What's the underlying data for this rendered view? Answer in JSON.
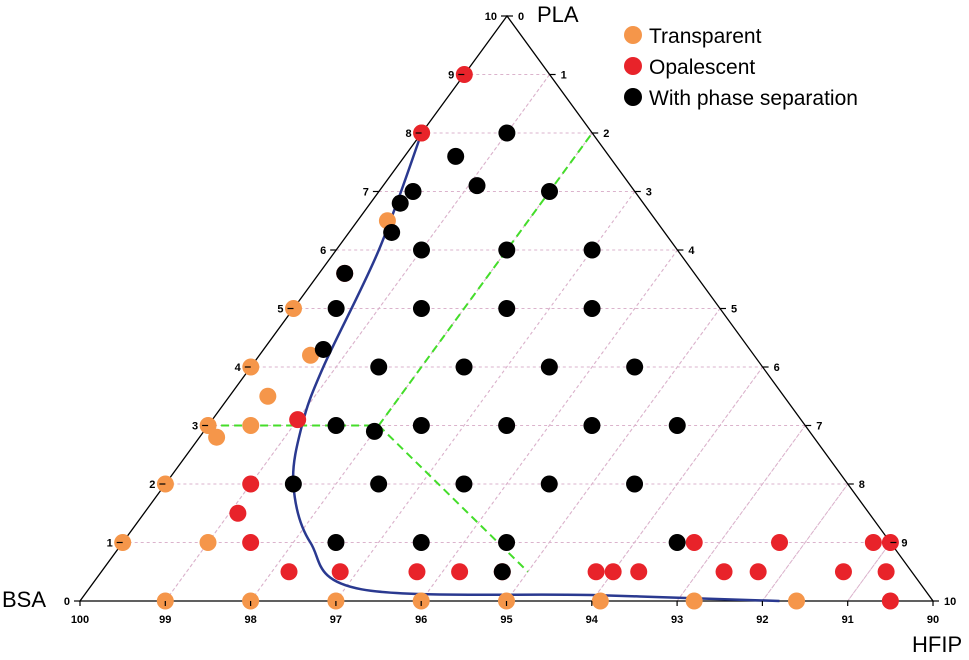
{
  "chart_data": {
    "type": "scatter",
    "subtype": "ternary",
    "axes": {
      "top": {
        "label": "PLA",
        "range": [
          0,
          10
        ]
      },
      "left": {
        "label": "BSA",
        "range": [
          90,
          100
        ]
      },
      "right": {
        "label": "HFIP",
        "range": [
          0,
          10
        ]
      }
    },
    "ticks": {
      "bottom": [
        "100",
        "99",
        "98",
        "97",
        "96",
        "95",
        "94",
        "93",
        "92",
        "91",
        "90"
      ],
      "left": [
        "0",
        "1",
        "2",
        "3",
        "4",
        "5",
        "6",
        "7",
        "8",
        "9",
        "10"
      ],
      "right": [
        "0",
        "1",
        "2",
        "3",
        "4",
        "5",
        "6",
        "7",
        "8",
        "9",
        "10"
      ]
    },
    "grid": true,
    "legend_position": "top-right",
    "series": [
      {
        "name": "Transparent",
        "color": "#f5964a",
        "points": [
          {
            "pla": 0,
            "hfip": 1
          },
          {
            "pla": 0,
            "hfip": 2
          },
          {
            "pla": 0,
            "hfip": 3
          },
          {
            "pla": 0,
            "hfip": 4
          },
          {
            "pla": 0,
            "hfip": 5
          },
          {
            "pla": 0,
            "hfip": 6.1
          },
          {
            "pla": 0,
            "hfip": 7.2
          },
          {
            "pla": 0,
            "hfip": 8.4
          },
          {
            "pla": 1,
            "hfip": 0
          },
          {
            "pla": 1,
            "hfip": 1
          },
          {
            "pla": 2,
            "hfip": 0
          },
          {
            "pla": 2.8,
            "hfip": 0.2
          },
          {
            "pla": 3,
            "hfip": 0
          },
          {
            "pla": 3,
            "hfip": 0.5
          },
          {
            "pla": 3.5,
            "hfip": 0.45
          },
          {
            "pla": 4,
            "hfip": 0
          },
          {
            "pla": 4.2,
            "hfip": 0.6
          },
          {
            "pla": 5,
            "hfip": 0
          },
          {
            "pla": 6.5,
            "hfip": 0.35
          },
          {
            "pla": 8,
            "hfip": 0
          }
        ]
      },
      {
        "name": "Opalescent",
        "color": "#e8232a",
        "points": [
          {
            "pla": 9,
            "hfip": 0
          },
          {
            "pla": 8,
            "hfip": 0
          },
          {
            "pla": 5.6,
            "hfip": 0.3
          },
          {
            "pla": 3.1,
            "hfip": 1
          },
          {
            "pla": 2,
            "hfip": 1
          },
          {
            "pla": 1.5,
            "hfip": 1.1
          },
          {
            "pla": 1,
            "hfip": 1.5
          },
          {
            "pla": 0.5,
            "hfip": 2.2
          },
          {
            "pla": 0.5,
            "hfip": 2.8
          },
          {
            "pla": 0.5,
            "hfip": 3.7
          },
          {
            "pla": 0.5,
            "hfip": 4.2
          },
          {
            "pla": 0.5,
            "hfip": 4.7
          },
          {
            "pla": 0.5,
            "hfip": 5.8
          },
          {
            "pla": 0.5,
            "hfip": 6
          },
          {
            "pla": 0.5,
            "hfip": 6.3
          },
          {
            "pla": 0.5,
            "hfip": 7.3
          },
          {
            "pla": 0.5,
            "hfip": 7.7
          },
          {
            "pla": 0.5,
            "hfip": 8.7
          },
          {
            "pla": 0.5,
            "hfip": 9.2
          },
          {
            "pla": 1,
            "hfip": 6.7
          },
          {
            "pla": 1,
            "hfip": 7.7
          },
          {
            "pla": 1,
            "hfip": 8.8
          },
          {
            "pla": 1,
            "hfip": 9
          },
          {
            "pla": 0,
            "hfip": 9.5
          }
        ]
      },
      {
        "name": "With phase separation",
        "color": "#000000",
        "points": [
          {
            "pla": 8,
            "hfip": 1
          },
          {
            "pla": 7.6,
            "hfip": 0.6
          },
          {
            "pla": 7,
            "hfip": 0.4
          },
          {
            "pla": 7.1,
            "hfip": 1.1
          },
          {
            "pla": 6.8,
            "hfip": 0.35
          },
          {
            "pla": 7,
            "hfip": 2
          },
          {
            "pla": 6.3,
            "hfip": 0.5
          },
          {
            "pla": 6,
            "hfip": 1
          },
          {
            "pla": 6,
            "hfip": 2
          },
          {
            "pla": 6,
            "hfip": 3
          },
          {
            "pla": 5.6,
            "hfip": 0.3
          },
          {
            "pla": 5,
            "hfip": 0.5
          },
          {
            "pla": 5,
            "hfip": 1.5
          },
          {
            "pla": 5,
            "hfip": 2.5
          },
          {
            "pla": 5,
            "hfip": 3.5
          },
          {
            "pla": 4.3,
            "hfip": 0.7
          },
          {
            "pla": 4,
            "hfip": 1.5
          },
          {
            "pla": 4,
            "hfip": 2.5
          },
          {
            "pla": 4,
            "hfip": 3.5
          },
          {
            "pla": 4,
            "hfip": 4.5
          },
          {
            "pla": 3,
            "hfip": 1.5
          },
          {
            "pla": 3,
            "hfip": 2.5
          },
          {
            "pla": 2.9,
            "hfip": 2
          },
          {
            "pla": 3,
            "hfip": 3.5
          },
          {
            "pla": 3,
            "hfip": 4.5
          },
          {
            "pla": 3,
            "hfip": 5.5
          },
          {
            "pla": 2,
            "hfip": 1.5
          },
          {
            "pla": 2,
            "hfip": 2.5
          },
          {
            "pla": 2,
            "hfip": 3.5
          },
          {
            "pla": 2,
            "hfip": 4.5
          },
          {
            "pla": 2,
            "hfip": 5.5
          },
          {
            "pla": 1,
            "hfip": 2.5
          },
          {
            "pla": 1,
            "hfip": 3.5
          },
          {
            "pla": 1,
            "hfip": 4.5
          },
          {
            "pla": 1,
            "hfip": 6.5
          },
          {
            "pla": 0.5,
            "hfip": 4.7
          }
        ]
      }
    ],
    "boundary_curve": {
      "color": "#2a3990",
      "points": [
        {
          "pla": 8,
          "hfip": 0
        },
        {
          "pla": 6,
          "hfip": 0.5
        },
        {
          "pla": 4,
          "hfip": 0.85
        },
        {
          "pla": 3,
          "hfip": 1.1
        },
        {
          "pla": 2,
          "hfip": 1.5
        },
        {
          "pla": 1,
          "hfip": 2.2
        },
        {
          "pla": 0.2,
          "hfip": 3.2
        },
        {
          "pla": 0.1,
          "hfip": 6
        },
        {
          "pla": 0,
          "hfip": 8.2
        }
      ]
    },
    "region_dividers": {
      "color": "#44dd2a",
      "segments": [
        [
          {
            "pla": 3,
            "hfip": 0
          },
          {
            "pla": 3,
            "hfip": 2
          }
        ],
        [
          {
            "pla": 3,
            "hfip": 2
          },
          {
            "pla": 8,
            "hfip": 2
          }
        ],
        [
          {
            "pla": 3,
            "hfip": 2
          },
          {
            "pla": 0.5,
            "hfip": 5
          }
        ]
      ]
    }
  }
}
